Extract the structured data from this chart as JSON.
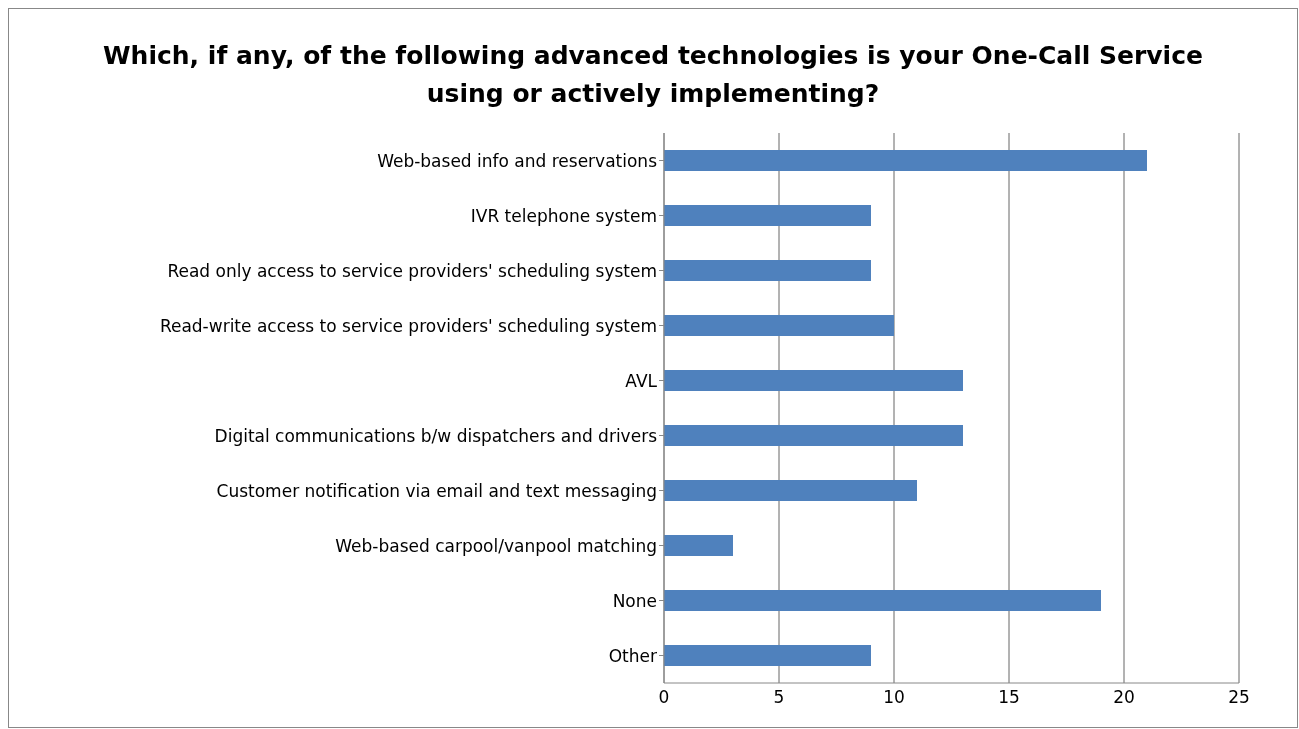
{
  "chart_data": {
    "type": "bar",
    "orientation": "horizontal",
    "title": "Which, if any, of the following advanced technologies is your One-Call Service using or actively implementing?",
    "categories": [
      "Web-based info and reservations",
      "IVR telephone system",
      "Read only access to service providers' scheduling system",
      "Read-write access to service providers' scheduling system",
      "AVL",
      "Digital communications b/w dispatchers and drivers",
      "Customer notification via email and text messaging",
      "Web-based carpool/vanpool matching",
      "None",
      "Other"
    ],
    "values": [
      21,
      9,
      9,
      10,
      13,
      13,
      11,
      3,
      19,
      9
    ],
    "color": "#4f81bd",
    "xlim": [
      0,
      25
    ],
    "xticks": [
      0,
      5,
      10,
      15,
      20,
      25
    ],
    "grid": "x"
  }
}
